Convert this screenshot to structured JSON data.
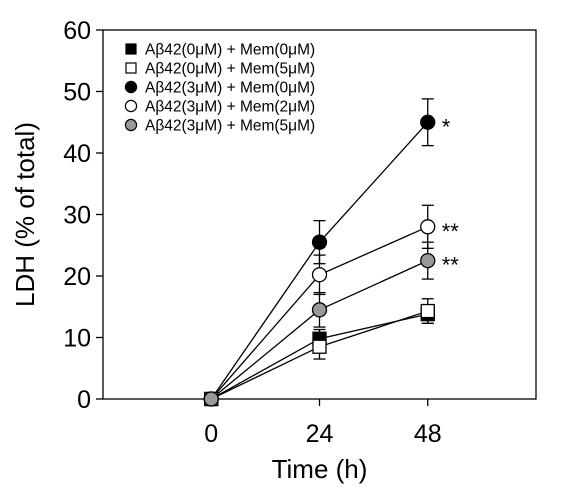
{
  "chart_data": {
    "type": "line",
    "title": "",
    "xlabel": "Time (h)",
    "ylabel": "LDH (% of total)",
    "x": [
      0,
      24,
      48
    ],
    "x_tick_labels": [
      "0",
      "24",
      "48"
    ],
    "xlim": [
      -24,
      72
    ],
    "ylim": [
      0,
      60
    ],
    "y_ticks": [
      0,
      10,
      20,
      30,
      40,
      50,
      60
    ],
    "y_tick_labels": [
      "0",
      "10",
      "20",
      "30",
      "40",
      "50",
      "60"
    ],
    "grid": false,
    "legend_position": "top-right",
    "series": [
      {
        "name": "Aβ42(0μM) + Mem(0μM)",
        "marker": "square",
        "fill": "#000000",
        "values": [
          0,
          9.8,
          13.8
        ],
        "errors": [
          0,
          1.5,
          1.5
        ]
      },
      {
        "name": "Aβ42(0μM) + Mem(5μM)",
        "marker": "square",
        "fill": "#ffffff",
        "values": [
          0,
          8.5,
          14.3
        ],
        "errors": [
          0,
          2.0,
          2.0
        ]
      },
      {
        "name": "Aβ42(3μM) + Mem(0μM)",
        "marker": "circle",
        "fill": "#000000",
        "values": [
          0,
          25.5,
          45.0
        ],
        "errors": [
          0,
          3.5,
          3.8
        ]
      },
      {
        "name": "Aβ42(3μM) + Mem(2μM)",
        "marker": "circle",
        "fill": "#ffffff",
        "values": [
          0,
          20.2,
          28.0
        ],
        "errors": [
          0,
          3.2,
          3.5
        ]
      },
      {
        "name": "Aβ42(3μM) + Mem(5μM)",
        "marker": "circle",
        "fill": "#999999",
        "values": [
          0,
          14.5,
          22.5
        ],
        "errors": [
          0,
          2.8,
          3.0
        ]
      }
    ],
    "annotations": [
      {
        "text": "*",
        "x": 48,
        "y": 45.0
      },
      {
        "text": "**",
        "x": 48,
        "y": 28.0
      },
      {
        "text": "**",
        "x": 48,
        "y": 22.5
      }
    ]
  }
}
